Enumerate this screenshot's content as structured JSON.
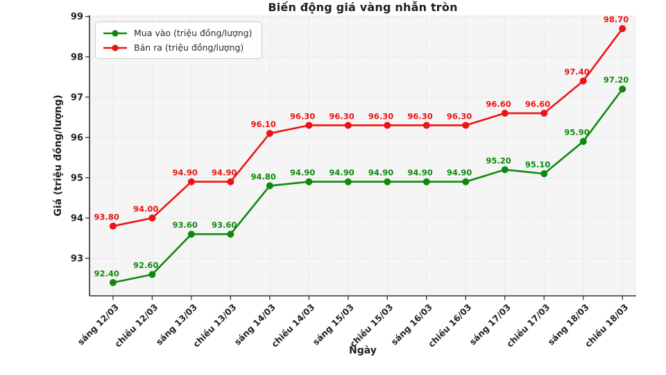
{
  "chart_data": {
    "type": "line",
    "title": "Biến động giá vàng nhẫn tròn",
    "xlabel": "Ngày",
    "ylabel": "Giá (triệu đồng/lượng)",
    "categories": [
      "sáng 12/03",
      "chiều 12/03",
      "sáng 13/03",
      "chiều 13/03",
      "sáng 14/03",
      "chiều 14/03",
      "sáng 15/03",
      "chiều 15/03",
      "sáng 16/03",
      "chiều 16/03",
      "sáng 17/03",
      "chiều 17/03",
      "sáng 18/03",
      "chiều 18/03"
    ],
    "series": [
      {
        "name": "Mua vào (triệu đồng/lượng)",
        "color": "#0c8a0c",
        "values": [
          92.4,
          92.6,
          93.6,
          93.6,
          94.8,
          94.9,
          94.9,
          94.9,
          94.9,
          94.9,
          95.2,
          95.1,
          95.9,
          97.2
        ]
      },
      {
        "name": "Bán ra (triệu đồng/lượng)",
        "color": "#ec1313",
        "values": [
          93.8,
          94.0,
          94.9,
          94.9,
          96.1,
          96.3,
          96.3,
          96.3,
          96.3,
          96.3,
          96.6,
          96.6,
          97.4,
          98.7
        ]
      }
    ],
    "yticks": [
      93,
      94,
      95,
      96,
      97,
      98,
      99
    ],
    "ylim": [
      92.07,
      99.03
    ],
    "grid": true,
    "grid_style": "dashed",
    "legend_position": "upper-left",
    "point_labels": "values shown at every point, 2 decimals, colored as series",
    "x_tick_rotation": 45
  },
  "style": {
    "plot_bg": "#f5f5f5",
    "grid_color": "#d9d9d9",
    "spine_color": "#2f2f2f",
    "tick_label_color": "#222222"
  }
}
